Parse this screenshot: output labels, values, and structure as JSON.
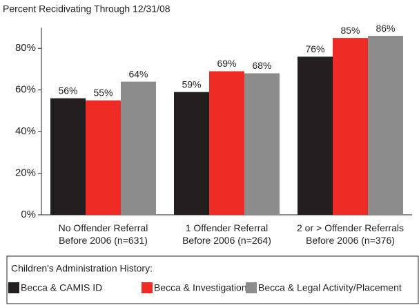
{
  "chart_data": {
    "type": "bar",
    "title": "Percent Recidivating Through 12/31/08",
    "categories": [
      "No Offender Referral\nBefore 2006 (n=631)",
      "1 Offender Referral\nBefore 2006 (n=264)",
      "2 or > Offender Referrals\nBefore 2006 (n=376)"
    ],
    "series": [
      {
        "name": "Becca & CAMIS ID",
        "color": "#231f20",
        "values": [
          56,
          59,
          76
        ],
        "value_labels": [
          "56%",
          "59%",
          "76%"
        ]
      },
      {
        "name": "Becca & Investigation",
        "color": "#ee2b24",
        "values": [
          55,
          69,
          85
        ],
        "value_labels": [
          "55%",
          "69%",
          "85%"
        ]
      },
      {
        "name": "Becca & Legal Activity/Placement",
        "color": "#8c8c8c",
        "values": [
          64,
          68,
          86
        ],
        "value_labels": [
          "64%",
          "68%",
          "86%"
        ]
      }
    ],
    "legend_title": "Children's Administration History:",
    "legend": "bottom",
    "ylim": [
      0,
      90
    ],
    "yticks": [
      {
        "value": 0,
        "label": "0%"
      },
      {
        "value": 20,
        "label": "20%"
      },
      {
        "value": 40,
        "label": "40%"
      },
      {
        "value": 60,
        "label": "60%"
      },
      {
        "value": 80,
        "label": "80%"
      }
    ],
    "grid": false
  }
}
